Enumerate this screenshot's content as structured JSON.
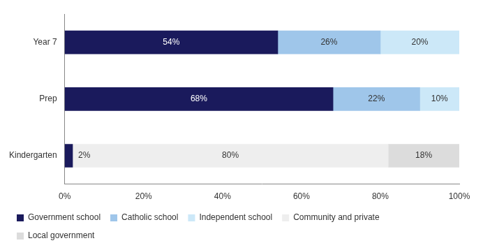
{
  "chart_data": {
    "type": "bar",
    "orientation": "horizontal",
    "stacked": true,
    "data_labels": true,
    "legend": "bottom",
    "grid": false,
    "categories": [
      "Year 7",
      "Prep",
      "Kindergarten"
    ],
    "xlim": [
      0,
      100
    ],
    "xticks": [
      {
        "value": 0,
        "label": "0%"
      },
      {
        "value": 20,
        "label": "20%"
      },
      {
        "value": 40,
        "label": "40%"
      },
      {
        "value": 60,
        "label": "60%"
      },
      {
        "value": 80,
        "label": "80%"
      },
      {
        "value": 100,
        "label": "100%"
      }
    ],
    "series": [
      {
        "name": "Government school",
        "color": "#1a1a5c",
        "values": [
          54,
          68,
          2
        ],
        "value_labels": [
          "54%",
          "68%",
          "2%"
        ]
      },
      {
        "name": "Catholic school",
        "color": "#9fc6ea",
        "values": [
          26,
          22,
          null
        ],
        "value_labels": [
          "26%",
          "22%",
          null
        ]
      },
      {
        "name": "Independent school",
        "color": "#cce8f8",
        "values": [
          20,
          10,
          null
        ],
        "value_labels": [
          "20%",
          "10%",
          null
        ]
      },
      {
        "name": "Community and private",
        "color": "#eeeeee",
        "values": [
          null,
          null,
          80
        ],
        "value_labels": [
          null,
          null,
          "80%"
        ]
      },
      {
        "name": "Local government",
        "color": "#dcdcdc",
        "values": [
          null,
          null,
          18
        ],
        "value_labels": [
          null,
          null,
          "18%"
        ]
      }
    ]
  }
}
